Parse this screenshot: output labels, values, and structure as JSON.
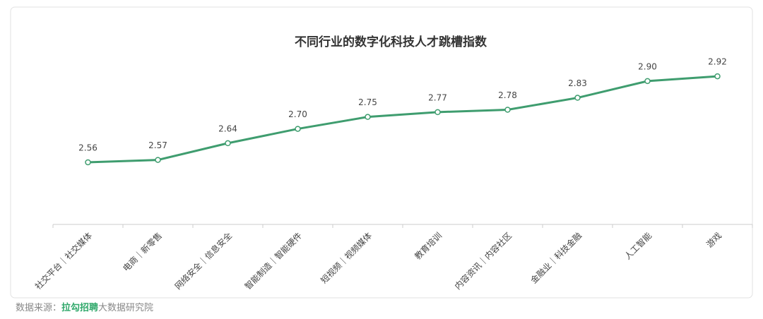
{
  "chart_data": {
    "type": "line",
    "title": "不同行业的数字化科技人才跳槽指数",
    "categories": [
      "社交平台｜社交媒体",
      "电商｜新零售",
      "网络安全｜信息安全",
      "智能制造｜智能硬件",
      "短视频｜视频媒体",
      "教育培训",
      "内容资讯｜内容社区",
      "金融业｜科技金融",
      "人工智能",
      "游戏"
    ],
    "values": [
      2.56,
      2.57,
      2.64,
      2.7,
      2.75,
      2.77,
      2.78,
      2.83,
      2.9,
      2.92
    ],
    "value_labels": [
      "2.56",
      "2.57",
      "2.64",
      "2.70",
      "2.75",
      "2.77",
      "2.78",
      "2.83",
      "2.90",
      "2.92"
    ],
    "color": "#3f9d6f",
    "ylim": [
      2.3,
      3.0
    ],
    "source_prefix": "数据来源：",
    "source_brand": "拉勾招聘",
    "source_suffix": "大数据研究院"
  }
}
